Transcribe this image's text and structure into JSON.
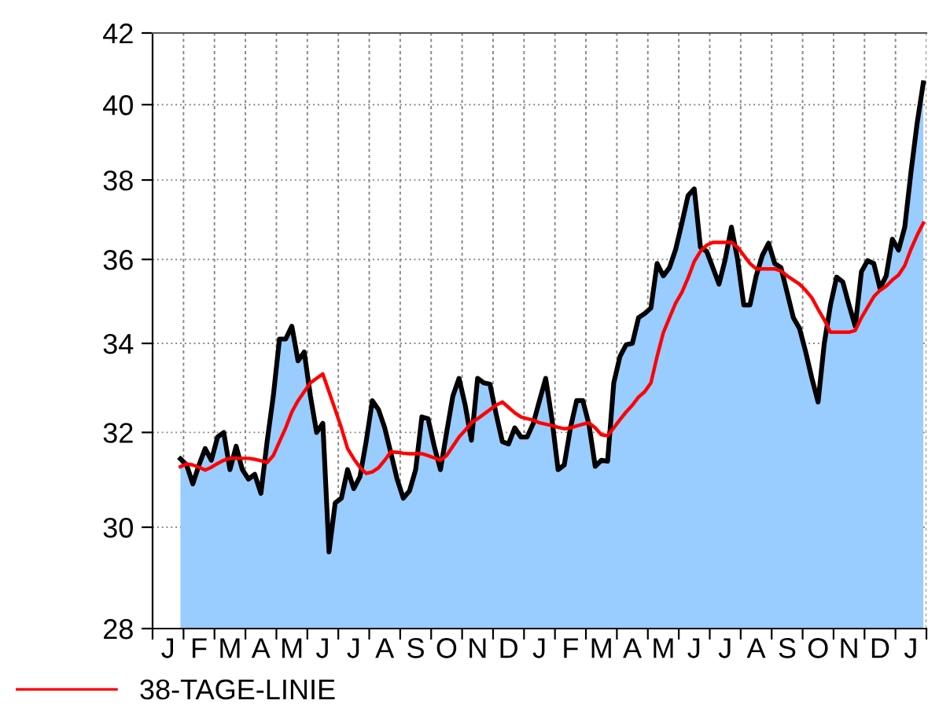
{
  "chart_data": {
    "type": "area",
    "log": "y",
    "ylim": [
      28,
      42
    ],
    "yticks": [
      28,
      30,
      32,
      34,
      36,
      38,
      40,
      42
    ],
    "categories": [
      null,
      null,
      "J",
      null,
      null,
      null,
      null,
      "F",
      null,
      null,
      null,
      null,
      "M",
      null,
      null,
      null,
      null,
      "A",
      null,
      null,
      null,
      null,
      "M",
      null,
      null,
      null,
      null,
      "J",
      null,
      null,
      null,
      null,
      "J",
      null,
      null,
      null,
      null,
      "A",
      null,
      null,
      null,
      null,
      "S",
      null,
      null,
      null,
      null,
      "O",
      null,
      null,
      null,
      null,
      "N",
      null,
      null,
      null,
      null,
      "D",
      null,
      null,
      null,
      null,
      "J",
      null,
      null,
      null,
      null,
      "F",
      null,
      null,
      null,
      null,
      "M",
      null,
      null,
      null,
      null,
      "A",
      null,
      null,
      null,
      null,
      "M",
      null,
      null,
      null,
      null,
      "J",
      null,
      null,
      null,
      null,
      "J",
      null,
      null,
      null,
      null,
      "A",
      null,
      null,
      null,
      null,
      "S",
      null,
      null,
      null,
      null,
      "O",
      null,
      null,
      null,
      null,
      "N",
      null,
      null,
      null,
      null,
      "D",
      null,
      null,
      null,
      null,
      "J",
      null,
      null
    ],
    "grid": true,
    "legend": "bottom",
    "series": [
      {
        "color": "#000000",
        "values": [
          null,
          null,
          null,
          null,
          31.43,
          31.3,
          30.9,
          31.3,
          31.65,
          31.4,
          31.9,
          32.0,
          31.2,
          31.7,
          31.2,
          31.0,
          31.1,
          30.7,
          31.8,
          32.8,
          34.1,
          34.1,
          34.4,
          33.6,
          33.8,
          32.8,
          32.0,
          32.2,
          29.5,
          30.5,
          30.6,
          31.2,
          30.8,
          31.05,
          31.8,
          32.7,
          32.5,
          32.1,
          31.55,
          31.0,
          30.6,
          30.75,
          31.2,
          32.34,
          32.3,
          31.7,
          31.2,
          32.0,
          32.8,
          33.2,
          32.6,
          31.83,
          33.2,
          33.1,
          33.07,
          32.4,
          31.8,
          31.75,
          32.1,
          31.9,
          31.9,
          32.2,
          32.7,
          33.2,
          32.3,
          31.2,
          31.3,
          32.1,
          32.7,
          32.7,
          32.17,
          31.27,
          31.4,
          31.38,
          33.1,
          33.7,
          33.97,
          34.0,
          34.6,
          34.7,
          34.83,
          35.9,
          35.6,
          35.8,
          36.25,
          36.9,
          37.6,
          37.77,
          36.3,
          36.2,
          35.8,
          35.4,
          36.0,
          36.8,
          36.0,
          34.9,
          34.9,
          35.6,
          36.1,
          36.4,
          35.9,
          35.8,
          35.2,
          34.6,
          34.35,
          33.8,
          33.2,
          32.67,
          34.0,
          34.9,
          35.57,
          35.45,
          34.9,
          34.4,
          35.7,
          35.97,
          35.9,
          35.3,
          35.6,
          36.5,
          36.23,
          36.8,
          38.2,
          39.5,
          40.6
        ]
      },
      {
        "type": "line",
        "name": "38-TAGE-LINIE",
        "color": "#ff0000",
        "values": [
          null,
          null,
          null,
          null,
          31.26,
          31.32,
          31.3,
          31.25,
          31.19,
          31.25,
          31.33,
          31.4,
          31.44,
          31.44,
          31.44,
          31.44,
          31.42,
          31.39,
          31.35,
          31.5,
          31.8,
          32.1,
          32.45,
          32.7,
          32.9,
          33.1,
          33.2,
          33.3,
          32.9,
          32.5,
          32.1,
          31.65,
          31.43,
          31.25,
          31.12,
          31.15,
          31.24,
          31.4,
          31.58,
          31.57,
          31.55,
          31.54,
          31.54,
          31.54,
          31.5,
          31.45,
          31.4,
          31.5,
          31.7,
          31.9,
          32.05,
          32.21,
          32.3,
          32.4,
          32.5,
          32.6,
          32.67,
          32.55,
          32.43,
          32.34,
          32.3,
          32.27,
          32.21,
          32.18,
          32.15,
          32.11,
          32.08,
          32.1,
          32.14,
          32.18,
          32.21,
          32.1,
          31.95,
          31.93,
          32.1,
          32.28,
          32.45,
          32.6,
          32.78,
          32.9,
          33.1,
          33.7,
          34.25,
          34.6,
          34.95,
          35.2,
          35.55,
          35.95,
          36.2,
          36.35,
          36.42,
          36.42,
          36.42,
          36.42,
          36.3,
          36.1,
          35.9,
          35.77,
          35.77,
          35.77,
          35.77,
          35.72,
          35.6,
          35.5,
          35.4,
          35.25,
          35.07,
          34.8,
          34.55,
          34.26,
          34.26,
          34.26,
          34.26,
          34.3,
          34.6,
          34.85,
          35.1,
          35.25,
          35.35,
          35.5,
          35.62,
          35.85,
          36.25,
          36.6,
          36.9
        ]
      }
    ]
  }
}
